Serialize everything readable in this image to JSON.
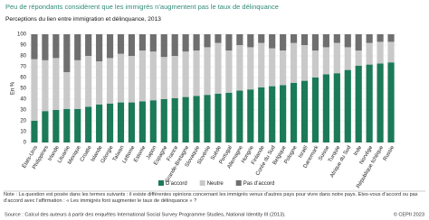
{
  "chart_data": {
    "type": "stacked_bar",
    "title": "Peu de répondants considèrent que les immigrés n’augmentent pas le taux de délinquance",
    "subtitle": "Perceptions du lien entre immigration et délinquance, 2013",
    "y_label": "En %",
    "categories": [
      "États-Unis",
      "Philippines",
      "Irlande",
      "Lituanie",
      "Mexique",
      "Croatie",
      "Islande",
      "Géorgie",
      "Taïwan",
      "Lettonie",
      "Estonie",
      "Japon",
      "Espagne",
      "France",
      "Grande-Bretagne",
      "Slovaquie",
      "Slovénie",
      "Suède",
      "Portugal",
      "Allemagne",
      "Hongrie",
      "Finlande",
      "Corée du Sud",
      "Belgique",
      "Pologne",
      "Israël",
      "Danemark",
      "Suisse",
      "Turquie",
      "Afrique du Sud",
      "Inde",
      "Norvège",
      "République tchèque",
      "Russie"
    ],
    "series": [
      {
        "name": "D’accord",
        "color": "#1b7a58",
        "values": [
          20,
          29,
          30,
          31,
          31,
          33,
          35,
          36,
          37,
          37,
          38,
          39,
          40,
          41,
          42,
          43,
          44,
          45,
          46,
          48,
          49,
          51,
          52,
          53,
          55,
          57,
          60,
          63,
          64,
          67,
          71,
          72,
          73,
          74
        ]
      },
      {
        "name": "Neutre",
        "color": "#c9c9c9",
        "values": [
          57,
          47,
          48,
          34,
          45,
          47,
          40,
          42,
          45,
          43,
          47,
          45,
          39,
          39,
          42,
          42,
          44,
          47,
          39,
          42,
          39,
          41,
          35,
          32,
          37,
          33,
          25,
          25,
          28,
          21,
          14,
          20,
          20,
          19
        ]
      },
      {
        "name": "Pas d’accord",
        "color": "#6f6f6f",
        "values": [
          23,
          24,
          22,
          35,
          24,
          20,
          25,
          22,
          18,
          20,
          15,
          16,
          21,
          20,
          16,
          15,
          12,
          8,
          15,
          10,
          12,
          8,
          13,
          15,
          8,
          10,
          15,
          12,
          8,
          12,
          15,
          8,
          7,
          7
        ]
      }
    ],
    "ylim": [
      0,
      100
    ],
    "yticks": [
      0,
      10,
      20,
      30,
      40,
      50,
      60,
      70,
      80,
      90,
      100
    ],
    "grid": true,
    "note": "Note : La question est posée dans les termes suivants : il existe différentes opinions concernant les immigrés venus d’autres pays pour vivre dans notre pays. Êtes-vous d’accord ou pas d’accord avec l’affirmation : « Les immigrés font augmenter le taux de délinquance » ?",
    "source": "Source : Calcul des auteurs à partir des enquêtes International Social Survey Programme Studies, National Identity III (2013).",
    "copyright": "© CEPII 2023"
  }
}
